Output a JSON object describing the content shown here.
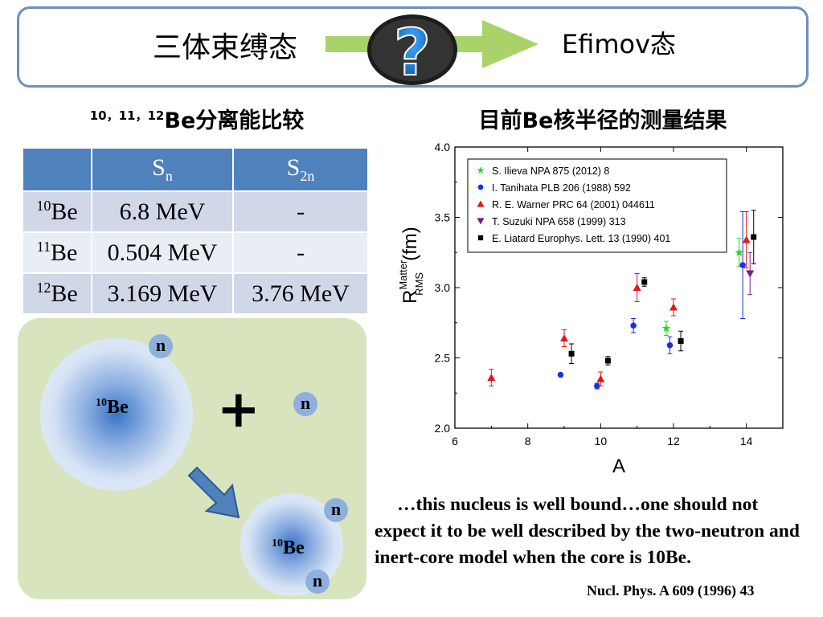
{
  "header": {
    "left_text": "三体束缚态",
    "right_text": "Efimov态",
    "center_icon": "question-mark-icon",
    "arrow_color": "#a9d36a"
  },
  "left_title": {
    "sup": "10，11，12",
    "text": "Be分离能比较"
  },
  "right_title": "目前Be核半径的测量结果",
  "table": {
    "headers": [
      {
        "main": "",
        "sub": ""
      },
      {
        "main": "S",
        "sub": "n"
      },
      {
        "main": "S",
        "sub": "2n"
      }
    ],
    "rows": [
      {
        "mass": "10",
        "elem": "Be",
        "sn": "6.8 MeV",
        "s2n": "-"
      },
      {
        "mass": "11",
        "elem": "Be",
        "sn": "0.504 MeV",
        "s2n": "-"
      },
      {
        "mass": "12",
        "elem": "Be",
        "sn": "3.169 MeV",
        "s2n": "3.76 MeV"
      }
    ]
  },
  "diagram": {
    "core_top": {
      "mass": "10",
      "elem": "Be"
    },
    "core_bottom": {
      "mass": "10",
      "elem": "Be"
    },
    "neutron": "n",
    "plus": "+"
  },
  "chart_data": {
    "type": "scatter",
    "xlabel": "A",
    "ylabel_main": "R",
    "ylabel_sup": "Matter",
    "ylabel_sub": "RMS",
    "ylabel_unit": "(fm)",
    "xlim": [
      6,
      15
    ],
    "ylim": [
      2.0,
      4.0
    ],
    "xticks": [
      "6",
      "8",
      "10",
      "12",
      "14"
    ],
    "yticks": [
      "2.0",
      "2.5",
      "3.0",
      "3.5",
      "4.0"
    ],
    "legend_position": "top-right",
    "series": [
      {
        "name": "S. Ilieva NPA 875 (2012) 8",
        "marker": "star",
        "color": "#22dd22",
        "points": [
          {
            "x": 11.8,
            "y": 2.71,
            "err": 0.05
          },
          {
            "x": 13.8,
            "y": 3.25,
            "err": 0.1
          }
        ]
      },
      {
        "name": "I. Tanihata PLB 206 (1988) 592",
        "marker": "circle",
        "color": "#1a2fe0",
        "points": [
          {
            "x": 8.9,
            "y": 2.38,
            "err": 0.01
          },
          {
            "x": 9.9,
            "y": 2.3,
            "err": 0.02
          },
          {
            "x": 10.9,
            "y": 2.73,
            "err": 0.05
          },
          {
            "x": 11.9,
            "y": 2.59,
            "err": 0.06
          },
          {
            "x": 13.9,
            "y": 3.16,
            "err": 0.38
          }
        ]
      },
      {
        "name": "R. E. Warner PRC 64 (2001) 044611",
        "marker": "triangle-up",
        "color": "#e01818",
        "points": [
          {
            "x": 7.0,
            "y": 2.36,
            "err": 0.06
          },
          {
            "x": 9.0,
            "y": 2.64,
            "err": 0.06
          },
          {
            "x": 10.0,
            "y": 2.35,
            "err": 0.05
          },
          {
            "x": 11.0,
            "y": 3.0,
            "err": 0.1
          },
          {
            "x": 12.0,
            "y": 2.86,
            "err": 0.06
          },
          {
            "x": 14.0,
            "y": 3.34,
            "err": 0.2
          }
        ]
      },
      {
        "name": "T. Suzuki NPA 658 (1999) 313",
        "marker": "triangle-down",
        "color": "#7a1a8a",
        "points": [
          {
            "x": 14.1,
            "y": 3.1,
            "err": 0.15
          }
        ]
      },
      {
        "name": "E. Liatard Europhys. Lett. 13 (1990) 401",
        "marker": "square",
        "color": "#000000",
        "points": [
          {
            "x": 9.2,
            "y": 2.53,
            "err": 0.07
          },
          {
            "x": 10.2,
            "y": 2.48,
            "err": 0.03
          },
          {
            "x": 11.2,
            "y": 3.04,
            "err": 0.03
          },
          {
            "x": 12.2,
            "y": 2.62,
            "err": 0.07
          },
          {
            "x": 14.2,
            "y": 3.36,
            "err": 0.19
          }
        ]
      }
    ]
  },
  "quote": "…this nucleus is well bound…one should not expect it to be well described by the two-neutron and inert-core model when the core is 10Be.",
  "citation": "Nucl. Phys. A 609 (1996) 43"
}
